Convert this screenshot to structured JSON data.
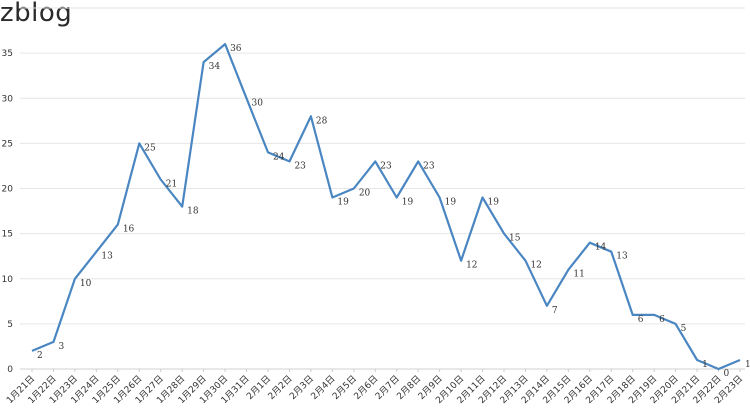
{
  "watermark": "zblog",
  "chart_data": {
    "type": "line",
    "title": "",
    "xlabel": "",
    "ylabel": "",
    "ylim": [
      0,
      40
    ],
    "yticks": [
      0,
      5,
      10,
      15,
      20,
      25,
      30,
      35
    ],
    "grid": true,
    "line_color": "#4a86c1",
    "categories": [
      "1月21日",
      "1月22日",
      "1月23日",
      "1月24日",
      "1月25日",
      "1月26日",
      "1月27日",
      "1月28日",
      "1月29日",
      "1月30日",
      "1月31日",
      "2月1日",
      "2月2日",
      "2月3日",
      "2月4日",
      "2月5日",
      "2月6日",
      "2月7日",
      "2月8日",
      "2月9日",
      "2月10日",
      "2月11日",
      "2月12日",
      "2月13日",
      "2月14日",
      "2月15日",
      "2月16日",
      "2月17日",
      "2月18日",
      "2月19日",
      "2月20日",
      "2月21日",
      "2月22日",
      "2月23日"
    ],
    "values": [
      2,
      3,
      10,
      13,
      16,
      25,
      21,
      18,
      34,
      36,
      30,
      24,
      23,
      28,
      19,
      20,
      23,
      19,
      23,
      19,
      12,
      19,
      15,
      12,
      7,
      11,
      14,
      13,
      6,
      6,
      5,
      1,
      0,
      1
    ]
  }
}
